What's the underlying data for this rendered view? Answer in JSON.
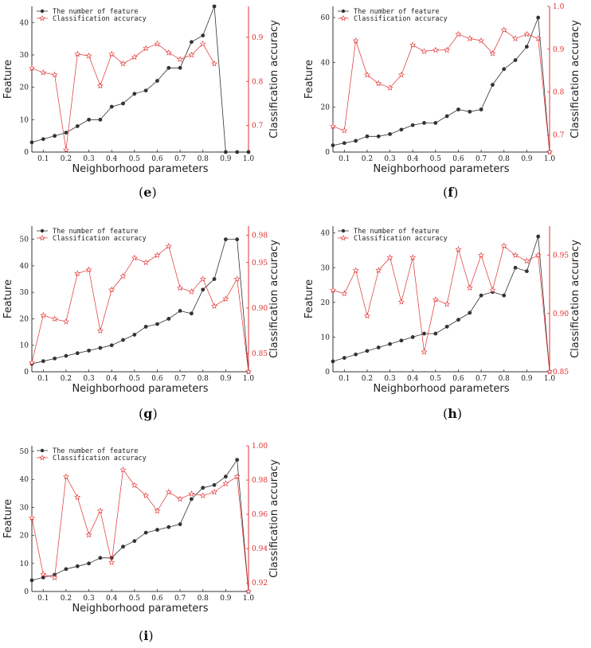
{
  "chart_data": [
    {
      "id": "e",
      "label": "e",
      "type": "line",
      "title": "",
      "xlabel": "Neighborhood parameters",
      "ylabel": "Feature",
      "y2label": "Classification accuracy",
      "x": [
        0.05,
        0.1,
        0.15,
        0.2,
        0.25,
        0.3,
        0.35,
        0.4,
        0.45,
        0.5,
        0.55,
        0.6,
        0.65,
        0.7,
        0.75,
        0.8,
        0.85,
        0.9,
        0.95,
        1.0
      ],
      "xticks": [
        "0.1",
        "0.2",
        "0.3",
        "0.4",
        "0.5",
        "0.6",
        "0.7",
        "0.8",
        "0.9",
        "1.0"
      ],
      "xlim": [
        0.05,
        1.0
      ],
      "ylim": [
        0,
        45
      ],
      "yticks": [
        "0",
        "10",
        "20",
        "30",
        "40"
      ],
      "y2lim": [
        0.64,
        0.97
      ],
      "y2ticks": [
        "0.7",
        "0.8",
        "0.9"
      ],
      "series": [
        {
          "name": "The number of feature",
          "axis": "left",
          "color": "#333333",
          "values": [
            3,
            4,
            5,
            6,
            8,
            10,
            10,
            14,
            15,
            18,
            19,
            22,
            26,
            26,
            34,
            36,
            45,
            0,
            0,
            0
          ]
        },
        {
          "name": "Classification accuracy",
          "axis": "right",
          "color": "#e03030",
          "values": [
            0.83,
            0.82,
            0.815,
            0.645,
            0.862,
            0.858,
            0.79,
            0.862,
            0.84,
            0.855,
            0.875,
            0.885,
            0.865,
            0.85,
            0.86,
            0.885,
            0.84,
            null,
            null,
            null
          ]
        }
      ],
      "legend": [
        "The number of feature",
        "Classification accuracy"
      ]
    },
    {
      "id": "f",
      "label": "f",
      "type": "line",
      "title": "",
      "xlabel": "Neighborhood parameters",
      "ylabel": "Feature",
      "y2label": "Classification accuracy",
      "x": [
        0.05,
        0.1,
        0.15,
        0.2,
        0.25,
        0.3,
        0.35,
        0.4,
        0.45,
        0.5,
        0.55,
        0.6,
        0.65,
        0.7,
        0.75,
        0.8,
        0.85,
        0.9,
        0.95,
        1.0
      ],
      "xticks": [
        "0.1",
        "0.2",
        "0.3",
        "0.4",
        "0.5",
        "0.6",
        "0.7",
        "0.8",
        "0.9",
        "1.0"
      ],
      "xlim": [
        0.05,
        1.0
      ],
      "ylim": [
        0,
        65
      ],
      "yticks": [
        "0",
        "20",
        "40",
        "60"
      ],
      "y2lim": [
        0.66,
        1.0
      ],
      "y2ticks": [
        "0.7",
        "0.8",
        "0.9",
        "1.0"
      ],
      "series": [
        {
          "name": "The number of feature",
          "axis": "left",
          "color": "#333333",
          "values": [
            3,
            4,
            5,
            7,
            7,
            8,
            10,
            12,
            13,
            13,
            16,
            19,
            18,
            19,
            30,
            37,
            41,
            47,
            60,
            0
          ]
        },
        {
          "name": "Classification accuracy",
          "axis": "right",
          "color": "#e03030",
          "values": [
            0.72,
            0.71,
            0.92,
            0.84,
            0.82,
            0.81,
            0.84,
            0.91,
            0.895,
            0.898,
            0.898,
            0.935,
            0.925,
            0.92,
            0.89,
            0.945,
            0.925,
            0.935,
            0.925,
            0.66
          ]
        }
      ],
      "legend": [
        "The number of feature",
        "Classification accuracy"
      ]
    },
    {
      "id": "g",
      "label": "g",
      "type": "line",
      "title": "",
      "xlabel": "Neighborhood parameters",
      "ylabel": "Feature",
      "y2label": "Classification accuracy",
      "x": [
        0.05,
        0.1,
        0.15,
        0.2,
        0.25,
        0.3,
        0.35,
        0.4,
        0.45,
        0.5,
        0.55,
        0.6,
        0.65,
        0.7,
        0.75,
        0.8,
        0.85,
        0.9,
        0.95,
        1.0
      ],
      "xticks": [
        "0.1",
        "0.2",
        "0.3",
        "0.4",
        "0.5",
        "0.6",
        "0.7",
        "0.8",
        "0.9",
        "1.0"
      ],
      "xlim": [
        0.05,
        1.0
      ],
      "ylim": [
        0,
        55
      ],
      "yticks": [
        "0",
        "10",
        "20",
        "30",
        "40",
        "50"
      ],
      "y2lim": [
        0.83,
        0.99
      ],
      "y2ticks": [
        "0.85",
        "0.90",
        "0.95",
        "0.98"
      ],
      "series": [
        {
          "name": "The number of feature",
          "axis": "left",
          "color": "#333333",
          "values": [
            3,
            4,
            5,
            6,
            7,
            8,
            9,
            10,
            12,
            14,
            17,
            18,
            20,
            23,
            22,
            31,
            35,
            50,
            50,
            0
          ]
        },
        {
          "name": "Classification accuracy",
          "axis": "right",
          "color": "#e03030",
          "values": [
            0.84,
            0.892,
            0.888,
            0.885,
            0.938,
            0.942,
            0.875,
            0.92,
            0.935,
            0.955,
            0.95,
            0.958,
            0.968,
            0.922,
            0.918,
            0.932,
            0.902,
            0.91,
            0.932,
            0.83
          ]
        }
      ],
      "legend": [
        "The number of feature",
        "Classification accuracy"
      ]
    },
    {
      "id": "h",
      "label": "h",
      "type": "line",
      "title": "",
      "xlabel": "Neighborhood parameters",
      "ylabel": "Feature",
      "y2label": "Classification accuracy",
      "x": [
        0.05,
        0.1,
        0.15,
        0.2,
        0.25,
        0.3,
        0.35,
        0.4,
        0.45,
        0.5,
        0.55,
        0.6,
        0.65,
        0.7,
        0.75,
        0.8,
        0.85,
        0.9,
        0.95,
        1.0
      ],
      "xticks": [
        "0.1",
        "0.2",
        "0.3",
        "0.4",
        "0.5",
        "0.6",
        "0.7",
        "0.8",
        "0.9",
        "1.0"
      ],
      "xlim": [
        0.05,
        1.0
      ],
      "ylim": [
        0,
        42
      ],
      "yticks": [
        "0",
        "10",
        "20",
        "30",
        "40"
      ],
      "y2lim": [
        0.85,
        0.975
      ],
      "y2ticks": [
        "0.85",
        "0.90",
        "0.95"
      ],
      "series": [
        {
          "name": "The number of feature",
          "axis": "left",
          "color": "#333333",
          "values": [
            3,
            4,
            5,
            6,
            7,
            8,
            9,
            10,
            11,
            11,
            13,
            15,
            17,
            22,
            23,
            22,
            30,
            29,
            39,
            0
          ]
        },
        {
          "name": "Classification accuracy",
          "axis": "right",
          "color": "#e03030",
          "values": [
            0.92,
            0.917,
            0.937,
            0.898,
            0.937,
            0.948,
            0.91,
            0.948,
            0.867,
            0.912,
            0.908,
            0.955,
            0.922,
            0.95,
            0.92,
            0.958,
            0.95,
            0.945,
            0.95,
            0.85
          ]
        }
      ],
      "legend": [
        "The number of feature",
        "Classification accuracy"
      ]
    },
    {
      "id": "i",
      "label": "i",
      "type": "line",
      "title": "",
      "xlabel": "Neighborhood parameters",
      "ylabel": "Feature",
      "y2label": "Classification accuracy",
      "x": [
        0.05,
        0.1,
        0.15,
        0.2,
        0.25,
        0.3,
        0.35,
        0.4,
        0.45,
        0.5,
        0.55,
        0.6,
        0.65,
        0.7,
        0.75,
        0.8,
        0.85,
        0.9,
        0.95,
        1.0
      ],
      "xticks": [
        "0.1",
        "0.2",
        "0.3",
        "0.4",
        "0.5",
        "0.6",
        "0.7",
        "0.8",
        "0.9",
        "1.0"
      ],
      "xlim": [
        0.05,
        1.0
      ],
      "ylim": [
        0,
        52
      ],
      "yticks": [
        "0",
        "10",
        "20",
        "30",
        "40",
        "50"
      ],
      "y2lim": [
        0.915,
        1.0
      ],
      "y2ticks": [
        "0.92",
        "0.94",
        "0.96",
        "0.98",
        "1.00"
      ],
      "series": [
        {
          "name": "The number of feature",
          "axis": "left",
          "color": "#333333",
          "values": [
            4,
            5,
            6,
            8,
            9,
            10,
            12,
            12,
            16,
            18,
            21,
            22,
            23,
            24,
            33,
            37,
            38,
            41,
            47,
            0
          ]
        },
        {
          "name": "Classification accuracy",
          "axis": "right",
          "color": "#e03030",
          "values": [
            0.958,
            0.925,
            0.923,
            0.982,
            0.97,
            0.948,
            0.962,
            0.932,
            0.986,
            0.977,
            0.971,
            0.962,
            0.973,
            0.969,
            0.972,
            0.971,
            0.973,
            0.978,
            0.982,
            0.915
          ]
        }
      ],
      "legend": [
        "The number of feature",
        "Classification accuracy"
      ]
    }
  ]
}
